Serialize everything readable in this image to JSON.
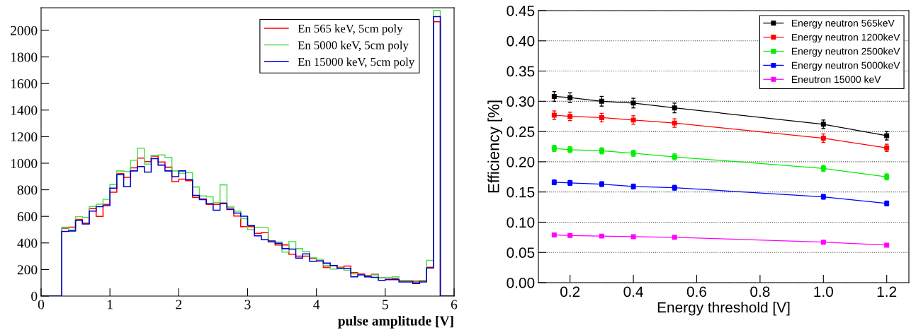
{
  "chart_data": [
    {
      "type": "histogram",
      "xlabel": "pulse amplitude [V]",
      "xlim": [
        0,
        6
      ],
      "ylim": [
        0,
        2170
      ],
      "xticks": [
        0,
        1,
        2,
        3,
        4,
        5,
        6
      ],
      "yticks": [
        0,
        200,
        400,
        600,
        800,
        1000,
        1200,
        1400,
        1600,
        1800,
        2000
      ],
      "legend": "top right",
      "grid": false,
      "bins": [
        0,
        0.1,
        0.2,
        0.3,
        0.4,
        0.5,
        0.6,
        0.7,
        0.8,
        0.9,
        1.0,
        1.1,
        1.2,
        1.3,
        1.4,
        1.5,
        1.6,
        1.7,
        1.8,
        1.9,
        2.0,
        2.1,
        2.2,
        2.3,
        2.4,
        2.5,
        2.6,
        2.7,
        2.8,
        2.9,
        3.0,
        3.1,
        3.2,
        3.3,
        3.4,
        3.5,
        3.6,
        3.7,
        3.8,
        3.9,
        4.0,
        4.1,
        4.2,
        4.3,
        4.4,
        4.5,
        4.6,
        4.7,
        4.8,
        4.9,
        5.0,
        5.1,
        5.2,
        5.3,
        5.4,
        5.5,
        5.6,
        5.7,
        5.8,
        5.9,
        6.0
      ],
      "series": [
        {
          "name": "En 565 keV, 5cm poly",
          "color": "#ff0000",
          "values": [
            0,
            0,
            0,
            510,
            519,
            577,
            549,
            658,
            600,
            690,
            782,
            922,
            894,
            965,
            1039,
            1012,
            1053,
            1009,
            970,
            862,
            880,
            869,
            743,
            731,
            690,
            690,
            701,
            662,
            602,
            522,
            522,
            472,
            477,
            407,
            385,
            385,
            315,
            301,
            301,
            283,
            265,
            216,
            230,
            216,
            226,
            177,
            166,
            154,
            164,
            138,
            134,
            131,
            115,
            115,
            106,
            115,
            216,
            2065,
            0,
            0
          ]
        },
        {
          "name": "En 5000 keV, 5cm poly",
          "color": "#55dd55",
          "values": [
            0,
            0,
            0,
            519,
            497,
            598,
            592,
            674,
            692,
            729,
            841,
            942,
            938,
            1023,
            1113,
            993,
            1058,
            1062,
            1044,
            942,
            924,
            929,
            821,
            754,
            747,
            704,
            837,
            671,
            639,
            583,
            500,
            516,
            516,
            412,
            407,
            331,
            410,
            357,
            336,
            288,
            278,
            230,
            203,
            212,
            194,
            168,
            159,
            145,
            159,
            138,
            138,
            145,
            118,
            118,
            118,
            118,
            269,
            2148,
            0,
            0
          ]
        },
        {
          "name": "En 15000 keV, 5cm poly",
          "color": "#0000cc",
          "values": [
            0,
            0,
            0,
            487,
            490,
            570,
            542,
            639,
            673,
            681,
            812,
            915,
            823,
            942,
            975,
            933,
            1035,
            986,
            942,
            899,
            942,
            876,
            758,
            726,
            696,
            646,
            696,
            651,
            625,
            601,
            530,
            454,
            424,
            415,
            398,
            357,
            354,
            286,
            318,
            262,
            265,
            248,
            230,
            209,
            209,
            145,
            159,
            145,
            141,
            118,
            124,
            124,
            106,
            106,
            95,
            106,
            212,
            2104,
            0,
            0
          ]
        }
      ]
    },
    {
      "type": "line",
      "xlabel": "Energy threshold [V]",
      "ylabel": "Efficiency [%]",
      "xlim": [
        0.1,
        1.27
      ],
      "ylim": [
        0,
        0.45
      ],
      "xticks": [
        0.2,
        0.4,
        0.6,
        0.8,
        {
          "value": 1.0,
          "label": "1.0"
        },
        1.2
      ],
      "yticks": [
        {
          "value": 0,
          "label": "0.00"
        },
        0.05,
        {
          "value": 0.1,
          "label": "0.10"
        },
        0.15,
        {
          "value": 0.2,
          "label": "0.20"
        },
        0.25,
        {
          "value": 0.3,
          "label": "0.30"
        },
        0.35,
        {
          "value": 0.4,
          "label": "0.40"
        },
        0.45
      ],
      "grid": "y",
      "legend": "top right",
      "marker": "square",
      "x": [
        0.15,
        0.2,
        0.3,
        0.4,
        0.53,
        1.0,
        1.2
      ],
      "series": [
        {
          "name": "Energy neutron 565keV",
          "color": "#000000",
          "values": [
            0.308,
            0.306,
            0.3,
            0.297,
            0.289,
            0.262,
            0.243
          ],
          "errors": [
            0.008,
            0.008,
            0.008,
            0.008,
            0.008,
            0.007,
            0.007
          ]
        },
        {
          "name": "Energy neutron 1200keV",
          "color": "#ff0000",
          "values": [
            0.277,
            0.275,
            0.273,
            0.269,
            0.264,
            0.239,
            0.223
          ],
          "errors": [
            0.007,
            0.007,
            0.007,
            0.007,
            0.007,
            0.007,
            0.006
          ]
        },
        {
          "name": "Energy neutron 2500keV",
          "color": "#00ee00",
          "values": [
            0.222,
            0.22,
            0.218,
            0.214,
            0.208,
            0.189,
            0.175
          ],
          "errors": [
            0.005,
            0.005,
            0.005,
            0.005,
            0.005,
            0.005,
            0.005
          ]
        },
        {
          "name": "Energy neutron 5000keV",
          "color": "#0000ff",
          "values": [
            0.166,
            0.165,
            0.163,
            0.159,
            0.157,
            0.142,
            0.131
          ],
          "errors": [
            0.004,
            0.004,
            0.004,
            0.004,
            0.004,
            0.004,
            0.004
          ]
        },
        {
          "name": "Eneutron 15000 keV",
          "color": "#ff00ff",
          "values": [
            0.079,
            0.078,
            0.077,
            0.076,
            0.075,
            0.067,
            0.062
          ],
          "errors": [
            0.002,
            0.002,
            0.002,
            0.002,
            0.002,
            0.002,
            0.002
          ]
        }
      ]
    }
  ]
}
